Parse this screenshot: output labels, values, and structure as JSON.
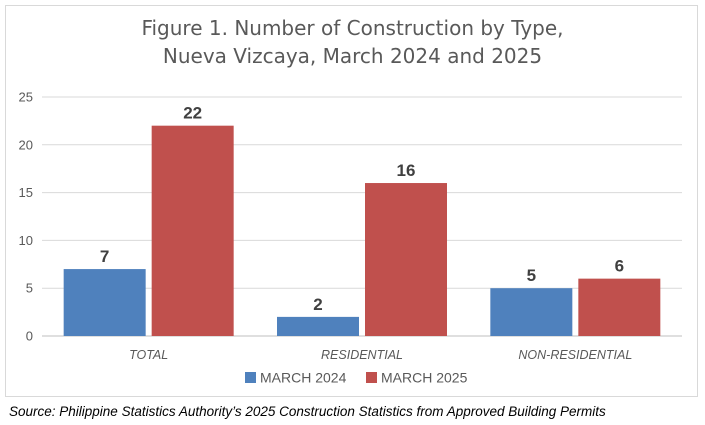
{
  "chart_data": {
    "type": "bar",
    "title_lines": [
      "Figure 1. Number of Construction by Type,",
      "Nueva Vizcaya, March 2024 and 2025"
    ],
    "categories": [
      "TOTAL",
      "RESIDENTIAL",
      "NON-RESIDENTIAL"
    ],
    "series": [
      {
        "name": "MARCH 2024",
        "values": [
          7,
          2,
          5
        ],
        "color": "#4f81bd"
      },
      {
        "name": "MARCH 2025",
        "values": [
          22,
          16,
          6
        ],
        "color": "#c0504d"
      }
    ],
    "ylim": [
      0,
      25
    ],
    "yticks": [
      0,
      5,
      10,
      15,
      20,
      25
    ],
    "grid": true,
    "legend": "bottom",
    "data_labels": true
  },
  "source": "Source: Philippine Statistics Authority’s 2025 Construction Statistics from Approved Building Permits"
}
